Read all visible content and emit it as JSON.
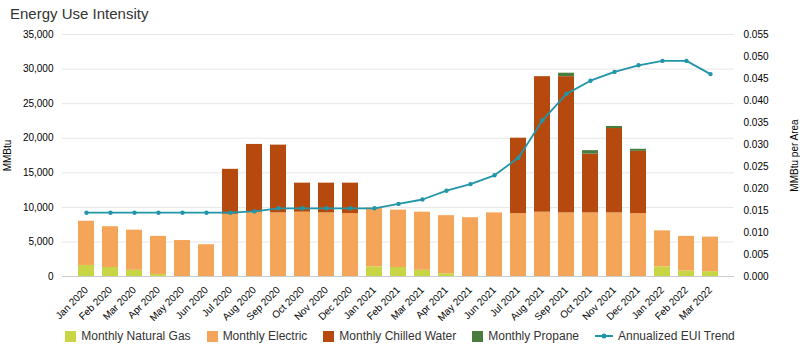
{
  "chart_data": {
    "type": "bar",
    "title": "Energy Use Intensity",
    "stacked": true,
    "grid": true,
    "legend": "bottom",
    "ylabel": "MMBtu",
    "y2label": "MMBtu per Area",
    "categories": [
      "Jan 2020",
      "Feb 2020",
      "Mar 2020",
      "Apr 2020",
      "May 2020",
      "Jun 2020",
      "Jul 2020",
      "Aug 2020",
      "Sep 2020",
      "Oct 2020",
      "Nov 2020",
      "Dec 2020",
      "Jan 2021",
      "Feb 2021",
      "Mar 2021",
      "Apr 2021",
      "May 2021",
      "Jun 2021",
      "Jul 2021",
      "Aug 2021",
      "Sep 2021",
      "Oct 2021",
      "Nov 2021",
      "Dec 2021",
      "Jan 2022",
      "Feb 2022",
      "Mar 2022"
    ],
    "series": [
      {
        "name": "Monthly Natural Gas",
        "color": "#c8d645",
        "values": [
          1600,
          1300,
          900,
          300,
          0,
          0,
          0,
          0,
          0,
          0,
          0,
          0,
          1400,
          1300,
          900,
          400,
          0,
          0,
          0,
          0,
          0,
          0,
          0,
          0,
          1400,
          800,
          700
        ]
      },
      {
        "name": "Monthly Electric",
        "color": "#f5a55a",
        "values": [
          6400,
          5900,
          5800,
          5500,
          5200,
          4600,
          9000,
          9300,
          9200,
          9300,
          9200,
          9100,
          8500,
          8300,
          8400,
          8400,
          8500,
          9200,
          9100,
          9300,
          9200,
          9200,
          9200,
          9100,
          5200,
          5000,
          5000
        ]
      },
      {
        "name": "Monthly Chilled Water",
        "color": "#b5490e",
        "values": [
          0,
          0,
          0,
          0,
          0,
          0,
          6500,
          9800,
          9800,
          4200,
          4300,
          4400,
          0,
          0,
          0,
          0,
          0,
          0,
          10900,
          19600,
          19700,
          8500,
          12200,
          9000,
          0,
          0,
          0
        ]
      },
      {
        "name": "Monthly Propane",
        "color": "#4a7c3f",
        "values": [
          0,
          0,
          0,
          0,
          0,
          0,
          0,
          0,
          0,
          0,
          0,
          0,
          0,
          0,
          0,
          0,
          0,
          0,
          0,
          0,
          500,
          500,
          300,
          300,
          0,
          0,
          0
        ]
      },
      {
        "name": "Annualized EUI Trend",
        "color": "#2196a8",
        "type": "line",
        "axis": "y2",
        "marker": "circle",
        "values": [
          0.0145,
          0.0145,
          0.0145,
          0.0145,
          0.0145,
          0.0145,
          0.0145,
          0.0148,
          0.0155,
          0.0155,
          0.0155,
          0.0155,
          0.0155,
          0.0165,
          0.0175,
          0.0195,
          0.021,
          0.023,
          0.027,
          0.0355,
          0.0415,
          0.0445,
          0.0465,
          0.048,
          0.049,
          0.049,
          0.046
        ]
      }
    ],
    "ylim": [
      0,
      35000
    ],
    "yticks": [
      0,
      {
        "value": 5000,
        "label": "5,000"
      },
      {
        "value": 10000,
        "label": "10,000"
      },
      {
        "value": 15000,
        "label": "15,000"
      },
      {
        "value": 20000,
        "label": "20,000"
      },
      {
        "value": 25000,
        "label": "25,000"
      },
      {
        "value": 30000,
        "label": "30,000"
      },
      {
        "value": 35000,
        "label": "35,000"
      }
    ],
    "y2lim": [
      0,
      0.055
    ],
    "y2ticks": [
      {
        "value": 0,
        "label": "0.000"
      },
      0.005,
      {
        "value": 0.01,
        "label": "0.010"
      },
      0.015,
      {
        "value": 0.02,
        "label": "0.020"
      },
      0.025,
      {
        "value": 0.03,
        "label": "0.030"
      },
      0.035,
      {
        "value": 0.04,
        "label": "0.040"
      },
      0.045,
      {
        "value": 0.05,
        "label": "0.050"
      },
      0.055
    ]
  }
}
